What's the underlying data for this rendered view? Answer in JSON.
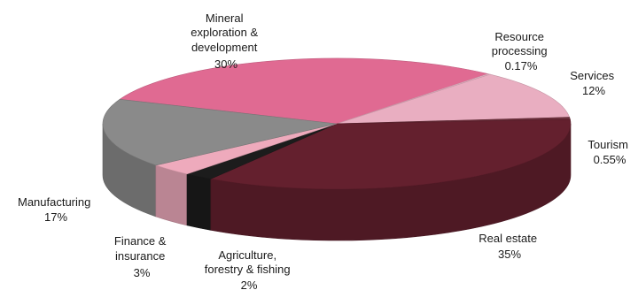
{
  "chart_data": {
    "type": "pie",
    "title": "",
    "style": "3d",
    "slices": [
      {
        "label_lines": [
          "Mineral",
          "exploration &",
          "development"
        ],
        "value_label": "30%",
        "value": 30,
        "color": "#e06a92"
      },
      {
        "label_lines": [
          "Resource",
          "processing"
        ],
        "value_label": "0.17%",
        "value": 0.17,
        "color": "#eebfcf"
      },
      {
        "label_lines": [
          "Services"
        ],
        "value_label": "12%",
        "value": 12,
        "color": "#e9aec1"
      },
      {
        "label_lines": [
          "Tourism"
        ],
        "value_label": "0.55%",
        "value": 0.55,
        "color": "#6a2e3a"
      },
      {
        "label_lines": [
          "Real estate"
        ],
        "value_label": "35%",
        "value": 35,
        "color": "#64202e"
      },
      {
        "label_lines": [
          "Agriculture,",
          "forestry & fishing"
        ],
        "value_label": "2%",
        "value": 2,
        "color": "#1c1c1c"
      },
      {
        "label_lines": [
          "Finance &",
          "insurance"
        ],
        "value_label": "3%",
        "value": 3,
        "color": "#eeaabc"
      },
      {
        "label_lines": [
          "Manufacturing"
        ],
        "value_label": "17%",
        "value": 17,
        "color": "#8a8a8a"
      }
    ]
  }
}
